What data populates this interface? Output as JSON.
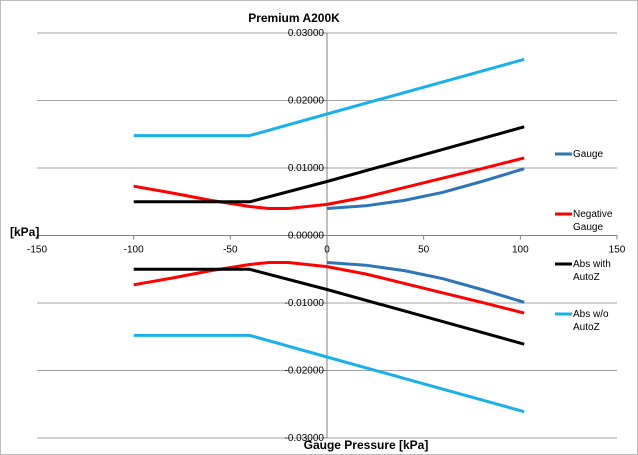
{
  "chart_data": {
    "type": "line",
    "title": "Premium A200K",
    "xlabel": "Gauge Pressure [kPa]",
    "ylabel": "[kPa]",
    "xlim": [
      -150,
      150
    ],
    "ylim": [
      -0.03,
      0.03
    ],
    "x_ticks": [
      "-150",
      "-100",
      "-50",
      "0",
      "50",
      "100",
      "150"
    ],
    "y_ticks": [
      "0.03000",
      "0.02000",
      "0.01000",
      "0.00000",
      "-0.01000",
      "-0.02000",
      "-0.03000"
    ],
    "grid": "horizontal",
    "legend_position": "right",
    "series": [
      {
        "name": "Gauge",
        "color": "#2e75b6",
        "segments": [
          [
            [
              0,
              0.004
            ],
            [
              20,
              0.0044
            ],
            [
              40,
              0.0052
            ],
            [
              60,
              0.0064
            ],
            [
              80,
              0.008
            ],
            [
              102,
              0.0099
            ]
          ],
          [
            [
              0,
              -0.004
            ],
            [
              20,
              -0.0044
            ],
            [
              40,
              -0.0052
            ],
            [
              60,
              -0.0064
            ],
            [
              80,
              -0.008
            ],
            [
              102,
              -0.0099
            ]
          ]
        ]
      },
      {
        "name": "Negative Gauge",
        "color": "#ff0000",
        "segments": [
          [
            [
              -100,
              0.0073
            ],
            [
              -80,
              0.0063
            ],
            [
              -60,
              0.0052
            ],
            [
              -40,
              0.0043
            ],
            [
              -30,
              0.004
            ],
            [
              -20,
              0.004
            ],
            [
              0,
              0.0046
            ],
            [
              20,
              0.0057
            ],
            [
              40,
              0.0071
            ],
            [
              60,
              0.0085
            ],
            [
              80,
              0.0099
            ],
            [
              102,
              0.0115
            ]
          ],
          [
            [
              -100,
              -0.0073
            ],
            [
              -80,
              -0.0063
            ],
            [
              -60,
              -0.0052
            ],
            [
              -40,
              -0.0043
            ],
            [
              -30,
              -0.004
            ],
            [
              -20,
              -0.004
            ],
            [
              0,
              -0.0046
            ],
            [
              20,
              -0.0057
            ],
            [
              40,
              -0.0071
            ],
            [
              60,
              -0.0085
            ],
            [
              80,
              -0.0099
            ],
            [
              102,
              -0.0115
            ]
          ]
        ]
      },
      {
        "name": "Abs with AutoZ",
        "color": "#000000",
        "segments": [
          [
            [
              -100,
              0.005
            ],
            [
              -40,
              0.005
            ],
            [
              0,
              0.008
            ],
            [
              102,
              0.0161
            ]
          ],
          [
            [
              -100,
              -0.005
            ],
            [
              -40,
              -0.005
            ],
            [
              0,
              -0.008
            ],
            [
              102,
              -0.0161
            ]
          ]
        ]
      },
      {
        "name": "Abs w/o AutoZ",
        "color": "#1cb0e8",
        "segments": [
          [
            [
              -100,
              0.0148
            ],
            [
              -40,
              0.0148
            ],
            [
              0,
              0.018
            ],
            [
              102,
              0.0261
            ]
          ],
          [
            [
              -100,
              -0.0148
            ],
            [
              -40,
              -0.0148
            ],
            [
              0,
              -0.018
            ],
            [
              102,
              -0.0261
            ]
          ]
        ]
      }
    ]
  },
  "legend": [
    {
      "lines": [
        "Gauge"
      ],
      "color": "#2e75b6"
    },
    {
      "lines": [
        "Negative",
        "Gauge"
      ],
      "color": "#ff0000"
    },
    {
      "lines": [
        "Abs with",
        "AutoZ"
      ],
      "color": "#000000"
    },
    {
      "lines": [
        "Abs w/o",
        "AutoZ"
      ],
      "color": "#1cb0e8"
    }
  ]
}
